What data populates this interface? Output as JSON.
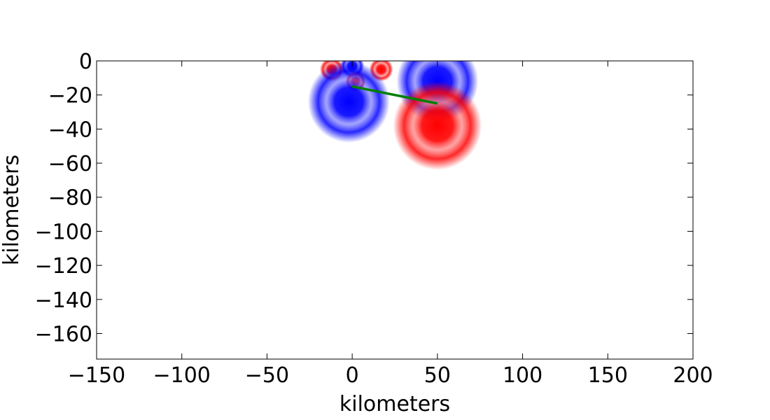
{
  "chart_data": {
    "type": "heatmap",
    "title": "",
    "xlabel": "kilometers",
    "ylabel": "kilometers",
    "xlim": [
      -150,
      200
    ],
    "ylim": [
      -175,
      0
    ],
    "x_ticks": [
      -150,
      -100,
      -50,
      0,
      50,
      100,
      150,
      200
    ],
    "x_tick_labels": [
      "−150",
      "−100",
      "−50",
      "0",
      "50",
      "100",
      "150",
      "200"
    ],
    "y_ticks": [
      0,
      -20,
      -40,
      -60,
      -80,
      -100,
      -120,
      -140,
      -160
    ],
    "y_tick_labels": [
      "0",
      "−20",
      "−40",
      "−60",
      "−80",
      "−100",
      "−120",
      "−140",
      "−160"
    ],
    "grid": false,
    "colors": {
      "positive": "#ff0000",
      "negative": "#0000ff",
      "line": "#008000"
    },
    "line_segment": {
      "x": [
        0,
        50
      ],
      "y": [
        -15,
        -25
      ]
    },
    "field_lobes": [
      {
        "cx": 0,
        "cy": -3,
        "r": 7,
        "sign": "negative"
      },
      {
        "cx": -12,
        "cy": -5,
        "r": 7,
        "sign": "positive"
      },
      {
        "cx": 17,
        "cy": -5,
        "r": 7,
        "sign": "positive"
      },
      {
        "cx": 2,
        "cy": -12,
        "r": 6,
        "sign": "positive"
      },
      {
        "cx": -2,
        "cy": -24,
        "r": 24,
        "sign": "negative"
      },
      {
        "cx": 50,
        "cy": -12,
        "r": 24,
        "sign": "negative"
      },
      {
        "cx": 50,
        "cy": -38,
        "r": 26,
        "sign": "positive"
      }
    ]
  }
}
